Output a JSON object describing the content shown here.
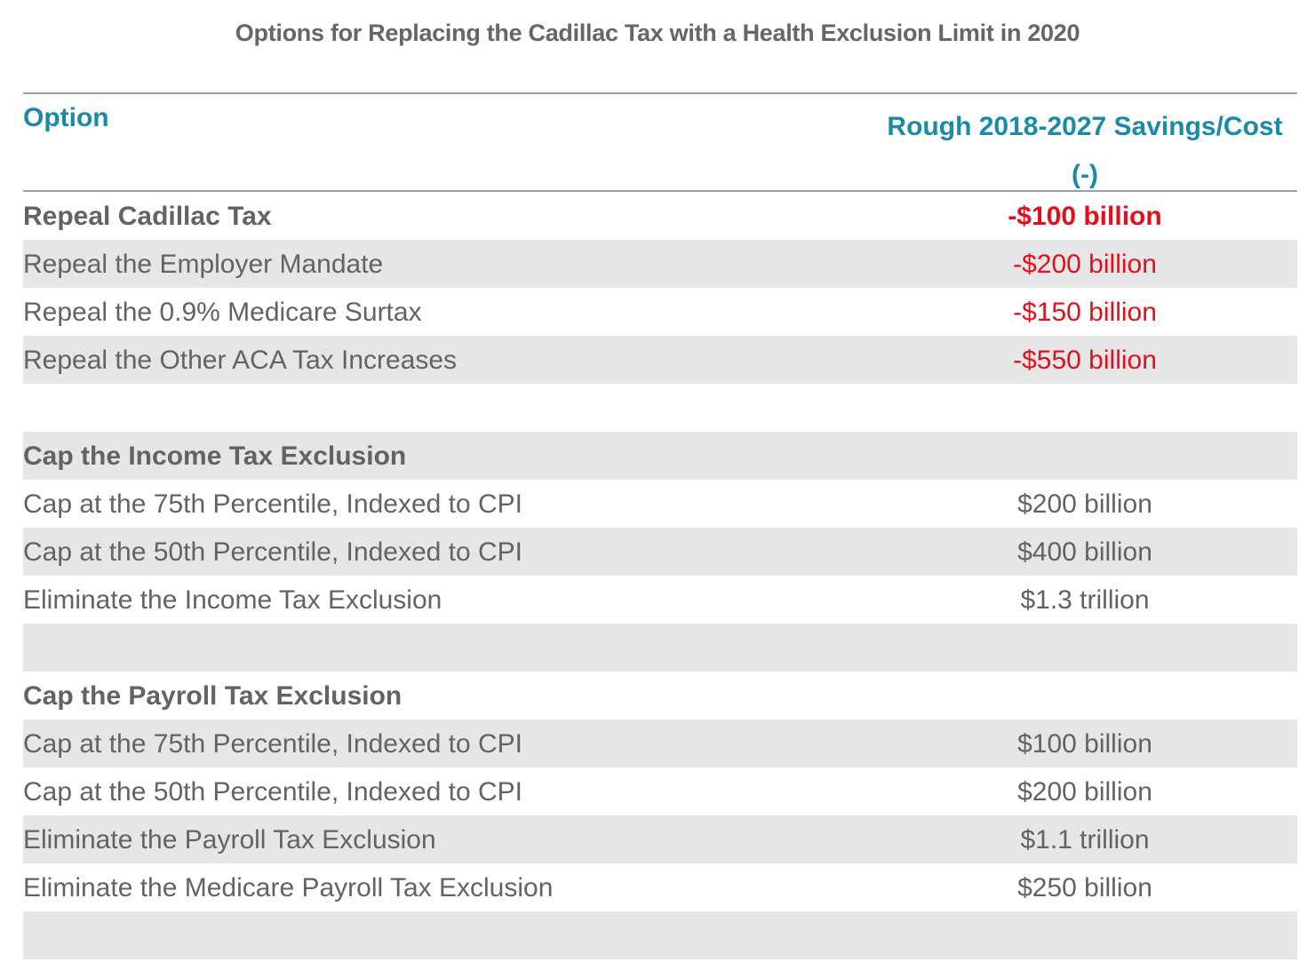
{
  "chart_data": {
    "type": "table",
    "title": "Options for Replacing the Cadillac Tax with a Health Exclusion Limit in 2020",
    "columns": [
      "Option",
      "Rough 2018-2027 Savings/Cost (-)"
    ],
    "header": {
      "option": "Option",
      "value_line1": "Rough 2018-2027 Savings/Cost",
      "value_line2": "(-)"
    },
    "colors": {
      "header": "#1b8aa6",
      "negative": "#e3101c",
      "text": "#636363",
      "band": "#e6e6e9"
    },
    "rows": [
      {
        "label": "Repeal Cadillac Tax",
        "value": "-$100 billion",
        "bold": true,
        "negative": true,
        "shaded": false
      },
      {
        "label": "Repeal the Employer Mandate",
        "value": "-$200 billion",
        "bold": false,
        "negative": true,
        "shaded": true
      },
      {
        "label": "Repeal the 0.9% Medicare Surtax",
        "value": "-$150 billion",
        "bold": false,
        "negative": true,
        "shaded": false
      },
      {
        "label": "Repeal the Other ACA Tax Increases",
        "value": "-$550 billion",
        "bold": false,
        "negative": true,
        "shaded": true
      },
      {
        "label": "",
        "value": "",
        "bold": false,
        "negative": false,
        "shaded": false
      },
      {
        "label": "Cap the Income Tax Exclusion",
        "value": "",
        "bold": true,
        "negative": false,
        "shaded": true
      },
      {
        "label": "Cap at the 75th Percentile, Indexed to CPI",
        "value": "$200 billion",
        "bold": false,
        "negative": false,
        "shaded": false
      },
      {
        "label": "Cap at the 50th Percentile, Indexed to CPI",
        "value": "$400 billion",
        "bold": false,
        "negative": false,
        "shaded": true
      },
      {
        "label": "Eliminate the Income Tax Exclusion",
        "value": "$1.3 trillion",
        "bold": false,
        "negative": false,
        "shaded": false
      },
      {
        "label": "",
        "value": "",
        "bold": false,
        "negative": false,
        "shaded": true
      },
      {
        "label": "Cap the Payroll Tax Exclusion",
        "value": "",
        "bold": true,
        "negative": false,
        "shaded": false
      },
      {
        "label": "Cap at the 75th Percentile, Indexed to CPI",
        "value": "$100 billion",
        "bold": false,
        "negative": false,
        "shaded": true
      },
      {
        "label": "Cap at the 50th Percentile, Indexed to CPI",
        "value": "$200 billion",
        "bold": false,
        "negative": false,
        "shaded": false
      },
      {
        "label": "Eliminate the Payroll Tax Exclusion",
        "value": "$1.1 trillion",
        "bold": false,
        "negative": false,
        "shaded": true
      },
      {
        "label": "Eliminate the Medicare Payroll Tax Exclusion",
        "value": "$250 billion",
        "bold": false,
        "negative": false,
        "shaded": false
      },
      {
        "label": "",
        "value": "",
        "bold": false,
        "negative": false,
        "shaded": true
      }
    ]
  }
}
